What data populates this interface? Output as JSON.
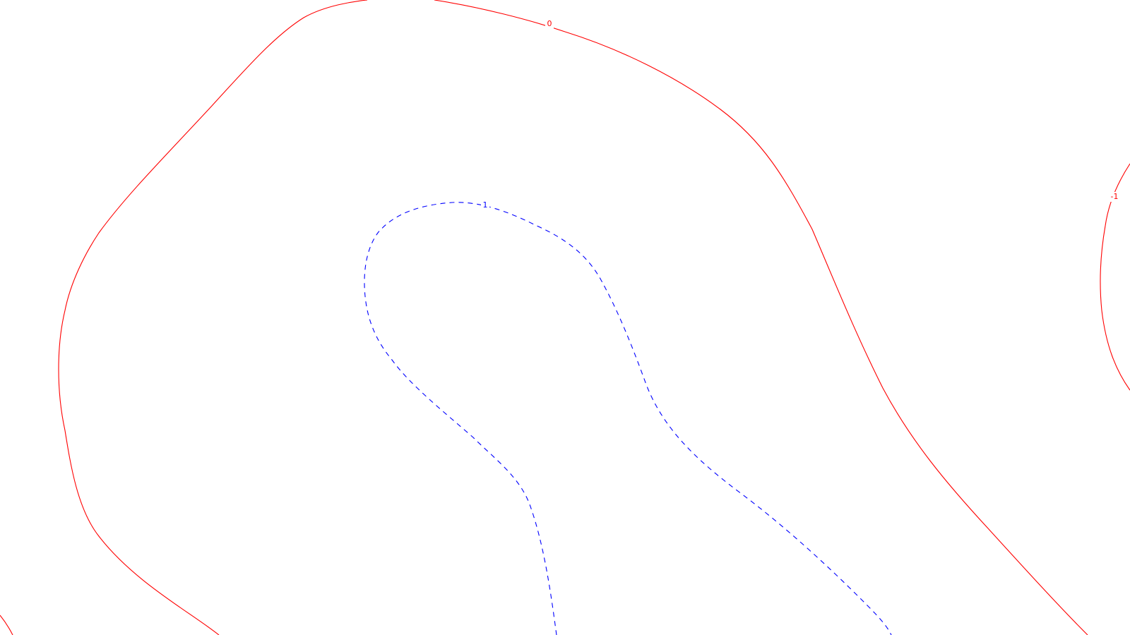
{
  "chart_data": {
    "type": "contour",
    "title": "",
    "xlabel": "",
    "ylabel": "",
    "grid": false,
    "legend": "none",
    "levels": [
      {
        "level": 0,
        "label": "0",
        "color": "#ff0000",
        "style": "solid"
      },
      {
        "level": -1,
        "label": "-1",
        "color": "#ff0000",
        "style": "solid"
      },
      {
        "level": 1,
        "label": "1",
        "color": "#0000ff",
        "style": "dashed"
      }
    ]
  }
}
